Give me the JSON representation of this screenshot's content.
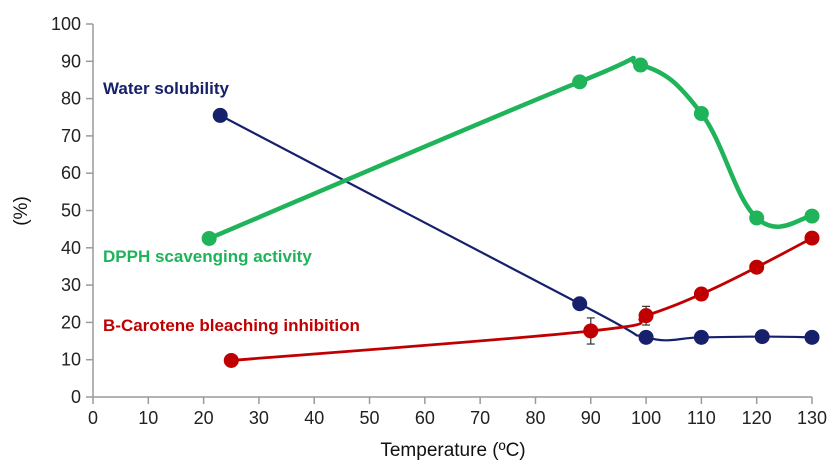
{
  "chart_data": {
    "type": "line",
    "title": "",
    "xlabel": "Temperature (ºC)",
    "ylabel": "(%)",
    "xlim": [
      0,
      130
    ],
    "ylim": [
      0,
      100
    ],
    "x_ticks": [
      0,
      10,
      20,
      30,
      40,
      50,
      60,
      70,
      80,
      90,
      100,
      110,
      120,
      130
    ],
    "y_ticks": [
      0,
      10,
      20,
      30,
      40,
      50,
      60,
      70,
      80,
      90,
      100
    ],
    "grid": false,
    "legend": "inline labels",
    "series": [
      {
        "name": "Water solubility",
        "color": "#16206b",
        "x": [
          23,
          88,
          100,
          110,
          121,
          130
        ],
        "y": [
          75.5,
          25,
          16,
          16,
          16.2,
          16
        ]
      },
      {
        "name": "DPPH scavenging activity",
        "color": "#1fb35a",
        "x": [
          21,
          88,
          99,
          110,
          120,
          130
        ],
        "y": [
          42.5,
          84.5,
          89,
          76,
          48,
          48.5
        ]
      },
      {
        "name": "B-Carotene bleaching inhibition",
        "color": "#c00000",
        "x": [
          25,
          90,
          100,
          110,
          120,
          130
        ],
        "y": [
          9.8,
          17.7,
          21.8,
          27.6,
          34.8,
          42.6
        ],
        "error": [
          0,
          3.5,
          2.5,
          0,
          0,
          0
        ]
      }
    ]
  }
}
